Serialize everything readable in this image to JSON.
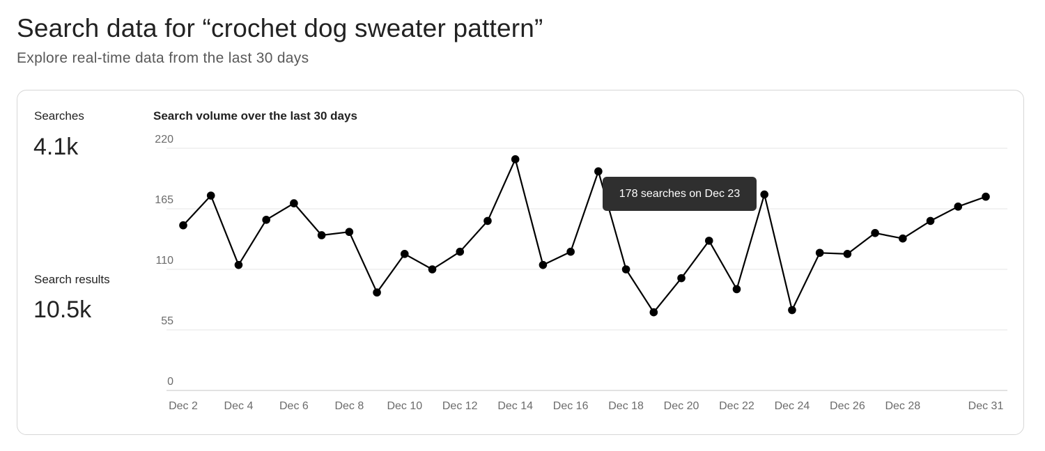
{
  "header": {
    "title": "Search data for “crochet dog sweater pattern”",
    "subtitle": "Explore real-time data from the last 30 days"
  },
  "stats": {
    "searches_label": "Searches",
    "searches_value": "4.1k",
    "results_label": "Search results",
    "results_value": "10.5k"
  },
  "tooltip": {
    "text": "178 searches on Dec 23"
  },
  "colors": {
    "line": "#000000",
    "grid": "#e4e4e4",
    "axis": "#c4c4c4",
    "tick_text": "#6b6b6b",
    "tooltip_bg": "#2f2f2f"
  },
  "chart_data": {
    "type": "line",
    "title": "Search volume over the last 30 days",
    "xlabel": "",
    "ylabel": "",
    "ylim": [
      0,
      220
    ],
    "yticks": [
      0,
      55,
      110,
      165,
      220
    ],
    "grid": true,
    "x": [
      "Dec 2",
      "Dec 3",
      "Dec 4",
      "Dec 5",
      "Dec 6",
      "Dec 7",
      "Dec 8",
      "Dec 9",
      "Dec 10",
      "Dec 11",
      "Dec 12",
      "Dec 13",
      "Dec 14",
      "Dec 15",
      "Dec 16",
      "Dec 17",
      "Dec 18",
      "Dec 19",
      "Dec 20",
      "Dec 21",
      "Dec 22",
      "Dec 23",
      "Dec 24",
      "Dec 25",
      "Dec 26",
      "Dec 27",
      "Dec 28",
      "Dec 29",
      "Dec 30",
      "Dec 31"
    ],
    "xtick_labels": [
      "Dec 2",
      "Dec 4",
      "Dec 6",
      "Dec 8",
      "Dec 10",
      "Dec 12",
      "Dec 14",
      "Dec 16",
      "Dec 18",
      "Dec 20",
      "Dec 22",
      "Dec 24",
      "Dec 26",
      "Dec 28",
      "Dec 31"
    ],
    "values": [
      150,
      177,
      114,
      155,
      170,
      141,
      144,
      89,
      124,
      110,
      126,
      154,
      210,
      114,
      126,
      199,
      110,
      71,
      102,
      136,
      92,
      178,
      73,
      125,
      124,
      143,
      138,
      154,
      167,
      176
    ]
  }
}
